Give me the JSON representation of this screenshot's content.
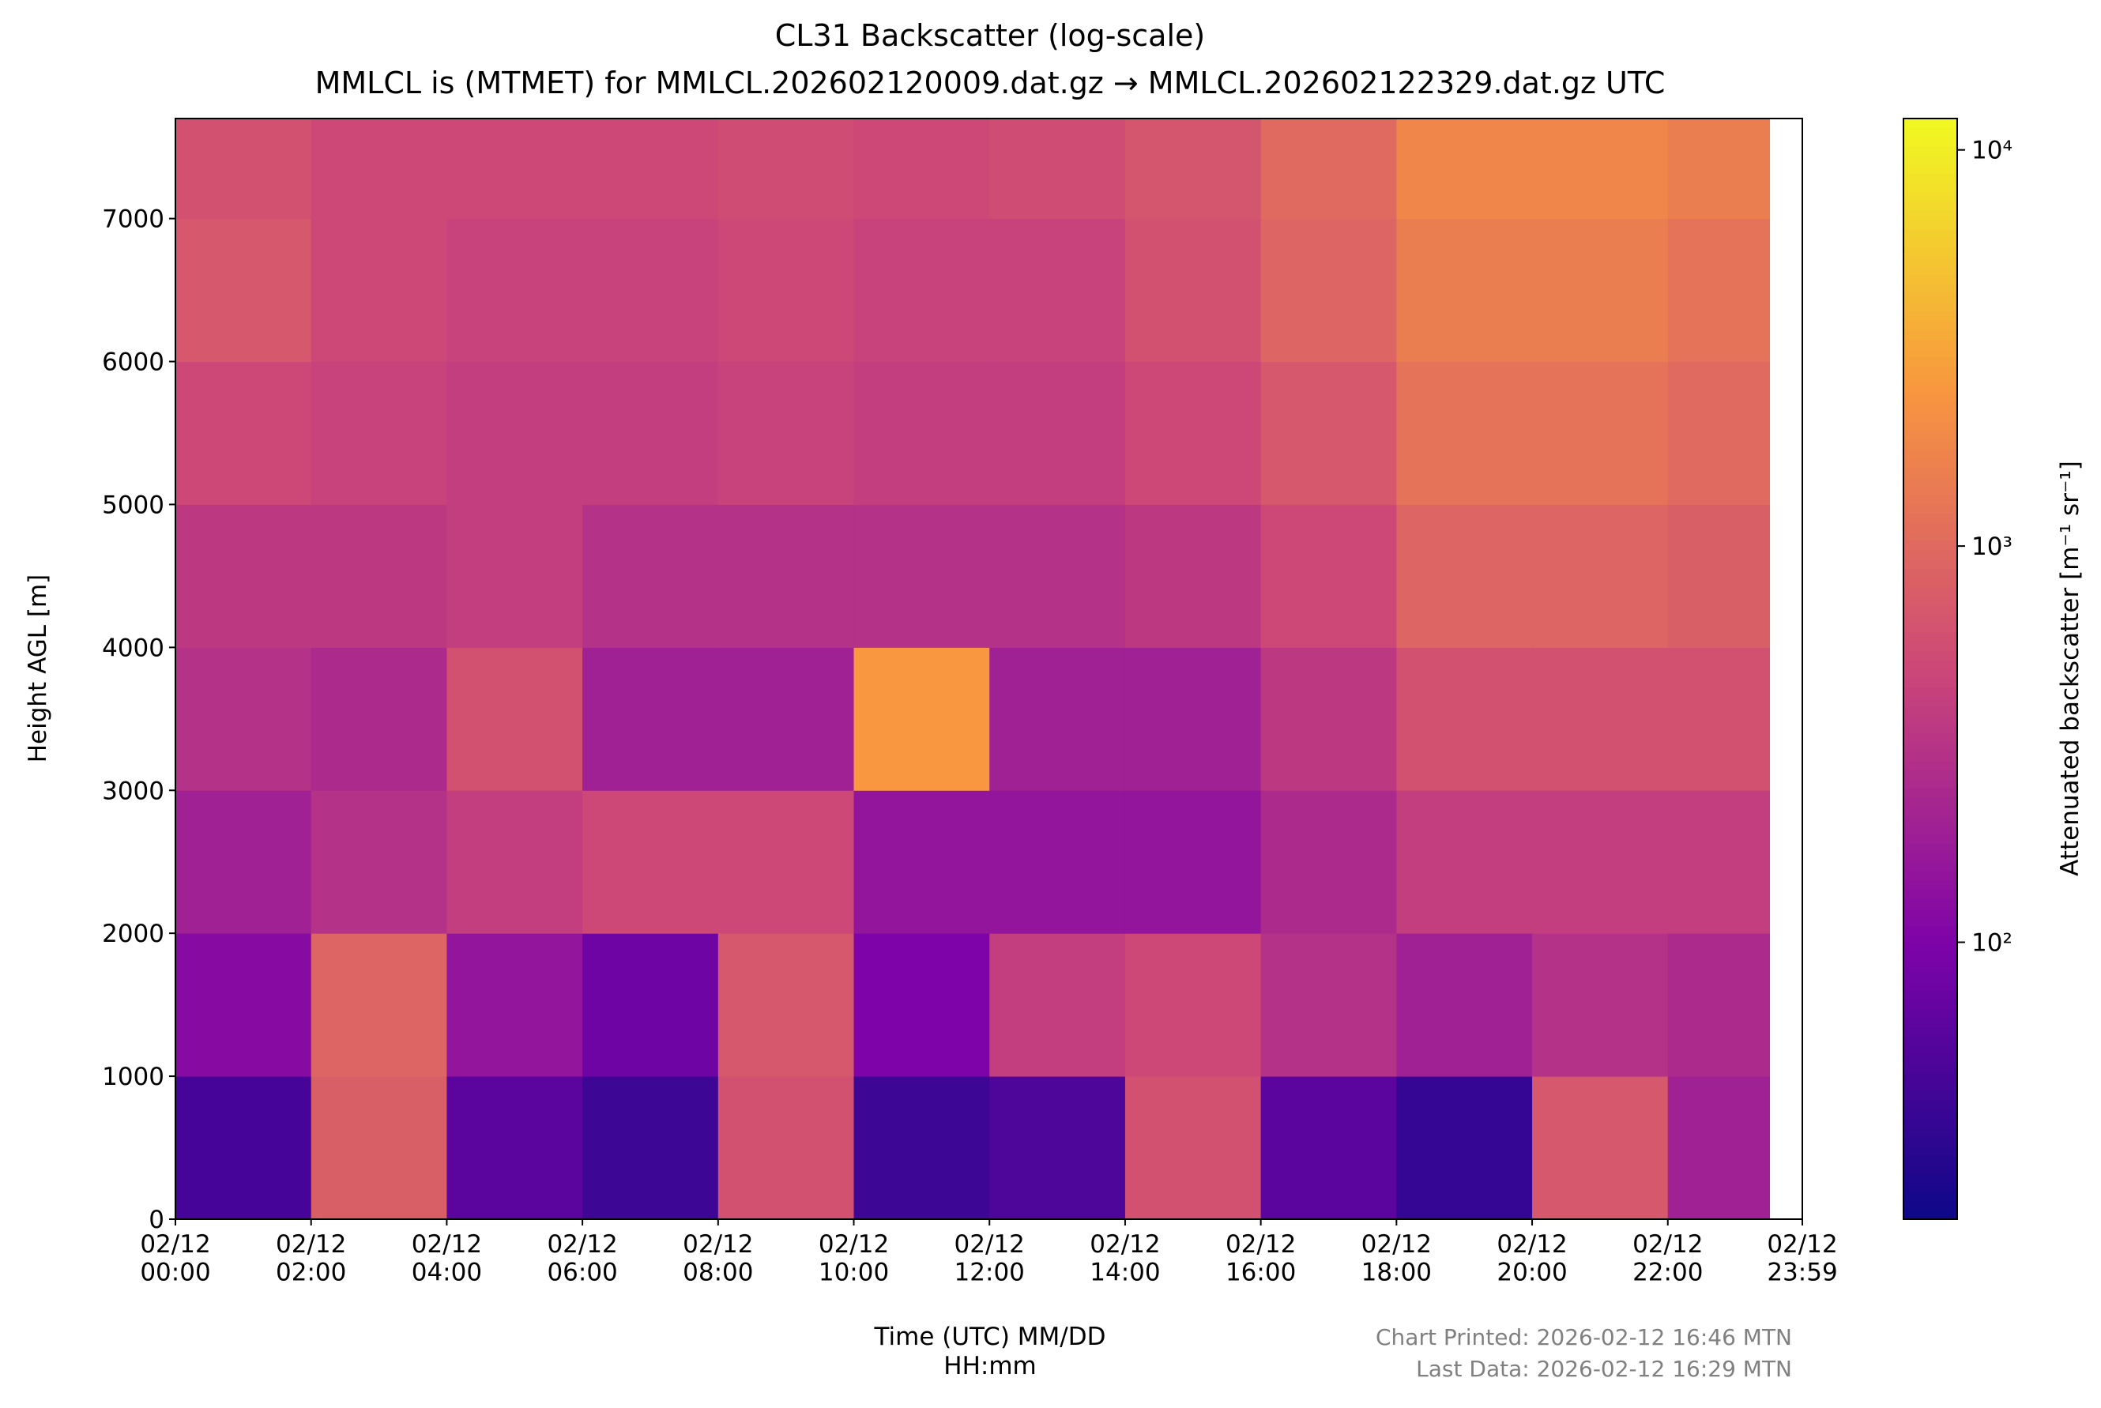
{
  "chart_data": {
    "type": "heatmap",
    "title": "CL31 Backscatter (log-scale)",
    "subtitle": "MMLCL is (MTMET) for MMLCL.202602120009.dat.gz → MMLCL.202602122329.dat.gz UTC",
    "x_label": "Time (UTC) MM/DD\nHH:mm",
    "y_label": "Height AGL [m]",
    "colorbar_label": "Attenuated backscatter [m⁻¹ sr⁻¹]",
    "colormap": "plasma",
    "clog": true,
    "clim": [
      20,
      12000
    ],
    "cticks": [
      {
        "value": 100,
        "label": "10²"
      },
      {
        "value": 1000,
        "label": "10³"
      },
      {
        "value": 10000,
        "label": "10⁴"
      }
    ],
    "xlim": [
      0,
      23.983
    ],
    "xticks": [
      {
        "value": 0,
        "label": "02/12\n00:00"
      },
      {
        "value": 2,
        "label": "02/12\n02:00"
      },
      {
        "value": 4,
        "label": "02/12\n04:00"
      },
      {
        "value": 6,
        "label": "02/12\n06:00"
      },
      {
        "value": 8,
        "label": "02/12\n08:00"
      },
      {
        "value": 10,
        "label": "02/12\n10:00"
      },
      {
        "value": 12,
        "label": "02/12\n12:00"
      },
      {
        "value": 14,
        "label": "02/12\n14:00"
      },
      {
        "value": 16,
        "label": "02/12\n16:00"
      },
      {
        "value": 18,
        "label": "02/12\n18:00"
      },
      {
        "value": 20,
        "label": "02/12\n20:00"
      },
      {
        "value": 22,
        "label": "02/12\n22:00"
      },
      {
        "value": 23.983,
        "label": "02/12\n23:59"
      }
    ],
    "ylim": [
      0,
      7700
    ],
    "yticks": [
      0,
      1000,
      2000,
      3000,
      4000,
      5000,
      6000,
      7000
    ],
    "x_edges": [
      0,
      2,
      4,
      6,
      8,
      10,
      12,
      14,
      16,
      18,
      20,
      22,
      23.5
    ],
    "y_edges": [
      0,
      1000,
      2000,
      3000,
      4000,
      5000,
      6000,
      7000,
      7700
    ],
    "z": [
      [
        45,
        800,
        60,
        40,
        600,
        40,
        50,
        600,
        60,
        35,
        700,
        200
      ],
      [
        120,
        900,
        150,
        80,
        700,
        100,
        400,
        500,
        300,
        200,
        300,
        250
      ],
      [
        200,
        300,
        400,
        500,
        500,
        150,
        150,
        150,
        250,
        400,
        400,
        400
      ],
      [
        300,
        250,
        600,
        200,
        200,
        2500,
        200,
        200,
        350,
        600,
        600,
        600
      ],
      [
        350,
        350,
        400,
        300,
        300,
        300,
        300,
        350,
        500,
        900,
        900,
        800
      ],
      [
        500,
        450,
        400,
        400,
        450,
        400,
        400,
        500,
        700,
        1200,
        1200,
        1000
      ],
      [
        700,
        500,
        450,
        450,
        500,
        450,
        450,
        600,
        900,
        1500,
        1500,
        1200
      ],
      [
        600,
        500,
        500,
        500,
        550,
        500,
        550,
        650,
        1000,
        1800,
        1800,
        1500
      ]
    ],
    "footnotes": [
      "Chart Printed: 2026-02-12 16:46 MTN",
      "Last Data: 2026-02-12 16:29 MTN"
    ]
  }
}
